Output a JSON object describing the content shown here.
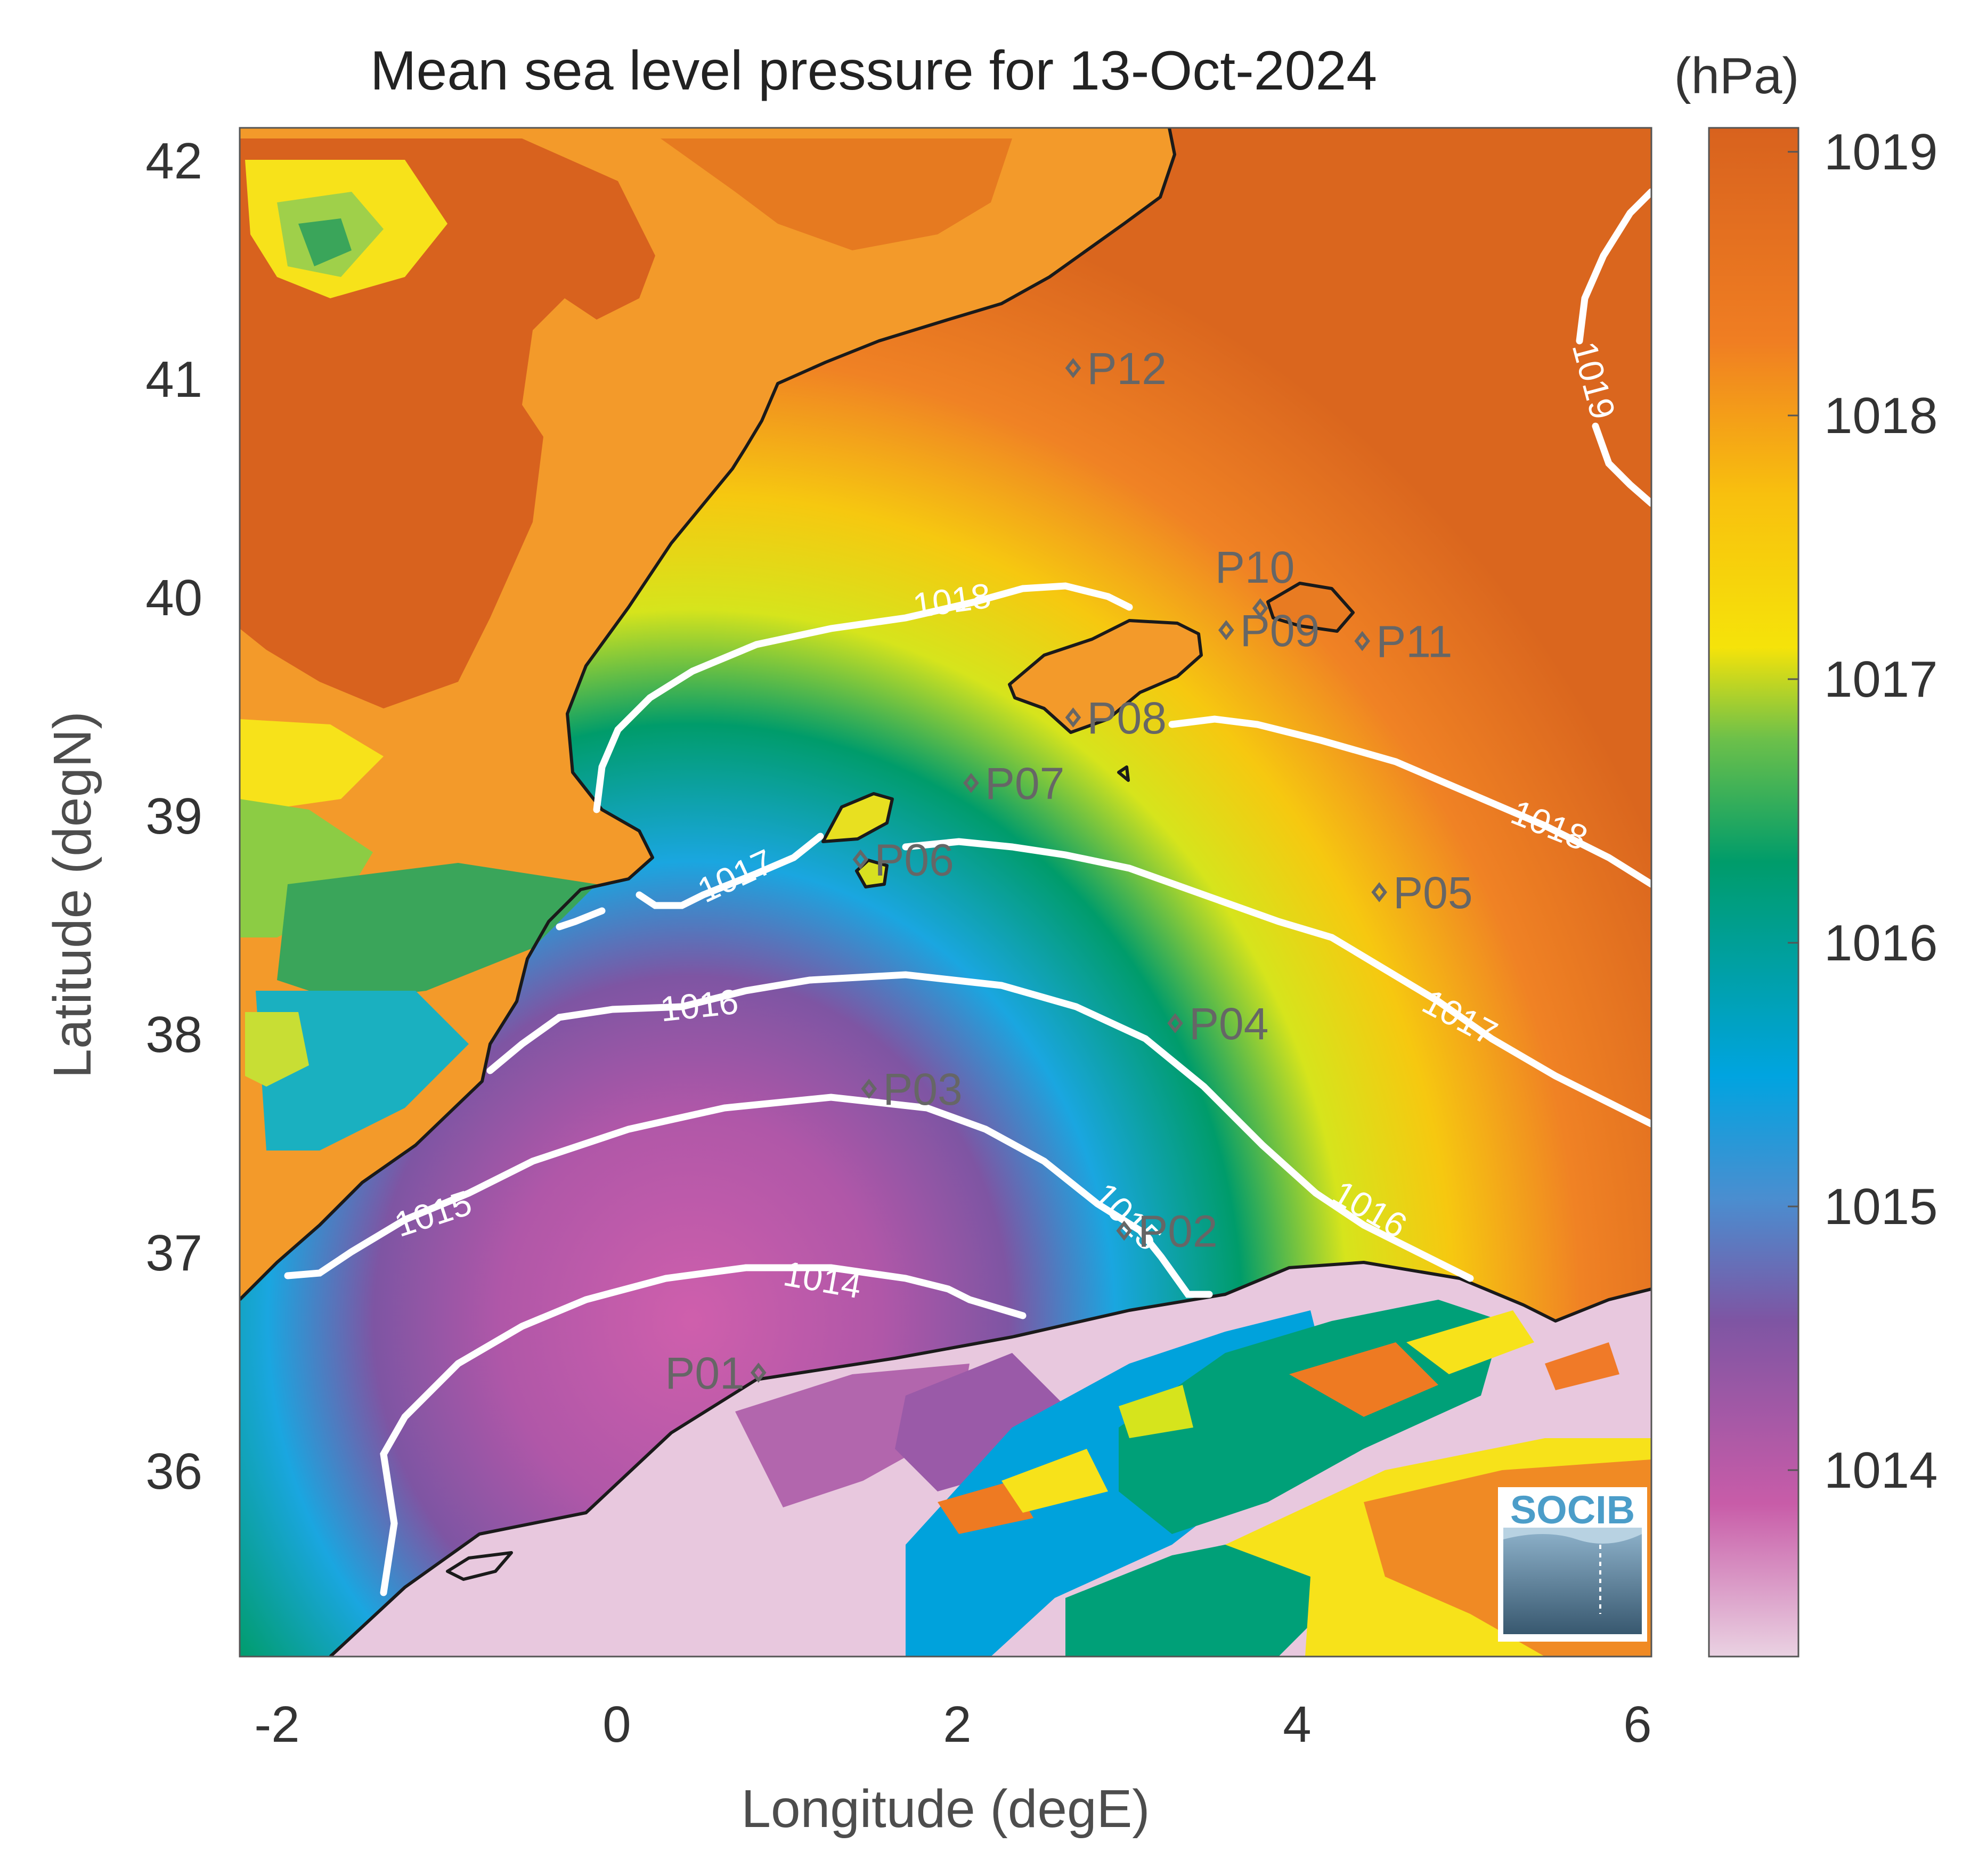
{
  "title": "Mean sea level pressure for 13-Oct-2024",
  "xlabel": "Longitude (degE)",
  "ylabel": "Latitude (degN)",
  "colorbar": {
    "unit": "(hPa)",
    "ticks": [
      "1019",
      "1018",
      "1017",
      "1016",
      "1015",
      "1014"
    ],
    "range": [
      1013.3,
      1019.1
    ],
    "colors": [
      "#e6c8dc",
      "#c35aa5",
      "#7d55a5",
      "#4696d2",
      "#00a0e1",
      "#00a078",
      "#009650",
      "#d2e61e",
      "#fae600",
      "#f5b414",
      "#f07d1e",
      "#d7641e"
    ]
  },
  "axes": {
    "xticks": [
      "-2",
      "0",
      "2",
      "4",
      "6"
    ],
    "yticks": [
      "42",
      "41",
      "40",
      "39",
      "38",
      "37",
      "36"
    ],
    "xlim": [
      -2.2,
      6.1
    ],
    "ylim": [
      35.2,
      42.2
    ]
  },
  "chart_data": {
    "type": "heatmap",
    "title": "Mean sea level pressure for 13-Oct-2024",
    "xlabel": "Longitude (degE)",
    "ylabel": "Latitude (degN)",
    "unit": "hPa",
    "contour_levels": [
      "1014",
      "1015",
      "1016",
      "1017",
      "1018",
      "1019"
    ],
    "stations": [
      {
        "name": "P01",
        "lon": 0.85,
        "lat": 36.5
      },
      {
        "name": "P02",
        "lon": 3.0,
        "lat": 37.15
      },
      {
        "name": "P03",
        "lon": 1.5,
        "lat": 37.8
      },
      {
        "name": "P04",
        "lon": 3.3,
        "lat": 38.1
      },
      {
        "name": "P05",
        "lon": 4.5,
        "lat": 38.7
      },
      {
        "name": "P06",
        "lon": 1.45,
        "lat": 38.85
      },
      {
        "name": "P07",
        "lon": 2.1,
        "lat": 39.2
      },
      {
        "name": "P08",
        "lon": 2.7,
        "lat": 39.5
      },
      {
        "name": "P09",
        "lon": 3.6,
        "lat": 39.9
      },
      {
        "name": "P10",
        "lon": 3.8,
        "lat": 40.0
      },
      {
        "name": "P11",
        "lon": 4.4,
        "lat": 39.85
      },
      {
        "name": "P12",
        "lon": 2.7,
        "lat": 41.1
      }
    ]
  },
  "logo": {
    "text": "SOCIB"
  }
}
